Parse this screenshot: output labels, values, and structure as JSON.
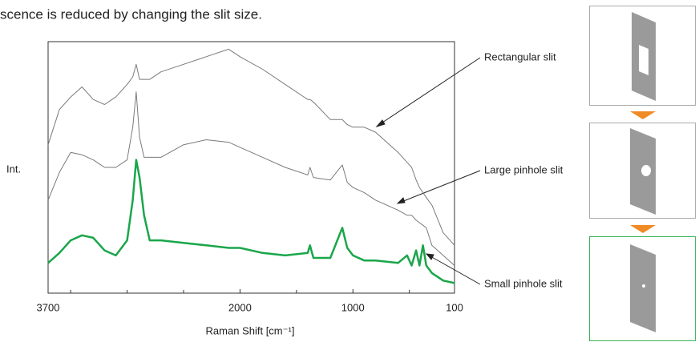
{
  "chart_data": {
    "type": "line",
    "title": "scence is reduced by changing the slit size.",
    "xlabel": "Raman Shift [cm⁻¹]",
    "ylabel": "Int.",
    "xlim": [
      3700,
      100
    ],
    "xticks": [
      3700,
      2000,
      1000,
      100
    ],
    "xminorticks": [
      3500,
      3000,
      2500,
      1500,
      500
    ],
    "ylim": [
      0,
      100
    ],
    "x": [
      3700,
      3600,
      3500,
      3400,
      3300,
      3200,
      3100,
      3000,
      2950,
      2920,
      2890,
      2850,
      2800,
      2700,
      2500,
      2300,
      2100,
      2000,
      1800,
      1600,
      1400,
      1380,
      1350,
      1200,
      1094,
      1050,
      1000,
      900,
      800,
      600,
      520,
      480,
      440,
      410,
      380,
      350,
      300,
      200,
      100
    ],
    "series": [
      {
        "name": "Rectangular slit",
        "color": "#7a7a7a",
        "values": [
          59,
          73,
          78,
          82,
          77,
          75,
          78,
          83,
          86,
          91,
          85,
          85,
          85,
          88,
          91,
          94,
          97,
          94,
          89,
          83,
          77,
          77,
          76,
          69,
          69,
          67,
          66,
          66,
          64,
          56,
          52,
          50,
          45,
          42,
          40,
          38,
          35,
          24,
          19
        ]
      },
      {
        "name": "Large pinhole slit",
        "color": "#7a7a7a",
        "values": [
          37,
          48,
          56,
          55,
          53,
          50,
          50,
          53,
          66,
          80,
          62,
          54,
          54,
          54,
          59,
          61,
          60,
          58,
          54,
          50,
          47,
          50,
          46,
          45,
          51,
          44,
          42,
          40,
          37,
          33,
          31,
          31,
          29,
          28,
          27,
          26,
          19,
          15,
          11
        ]
      },
      {
        "name": "Small pinhole slit",
        "color": "#1aa64a",
        "values": [
          12,
          16,
          21,
          23,
          22,
          17,
          15,
          21,
          37,
          53,
          46,
          31,
          21,
          21,
          20,
          19,
          18,
          18,
          16,
          15,
          16,
          19,
          14,
          14,
          26,
          18,
          15,
          13,
          13,
          12,
          15,
          11,
          17,
          11,
          19,
          11,
          8,
          5,
          4
        ]
      }
    ]
  }
}
